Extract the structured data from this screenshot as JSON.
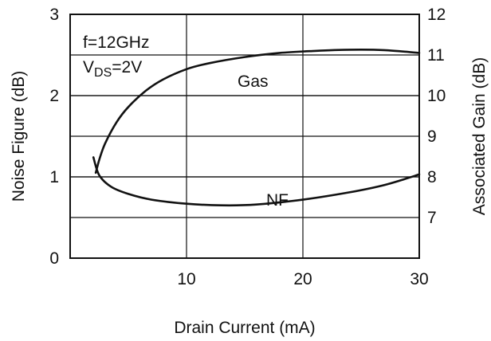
{
  "chart_data": {
    "type": "line",
    "title": "",
    "xlabel": "Drain Current (mA)",
    "ylabel_left": "Noise Figure (dB)",
    "ylabel_right": "Associated Gain (dB)",
    "xlim": [
      0,
      30
    ],
    "ylim_left": [
      0,
      3
    ],
    "ylim_right": [
      6,
      12
    ],
    "x_ticks": [
      {
        "value": 10,
        "label": "10"
      },
      {
        "value": 20,
        "label": "20"
      },
      {
        "value": 30,
        "label": "30"
      }
    ],
    "y_left_ticks": [
      {
        "value": 0,
        "label": "0"
      },
      {
        "value": 1,
        "label": "1"
      },
      {
        "value": 2,
        "label": "2"
      },
      {
        "value": 3,
        "label": "3"
      }
    ],
    "y_right_ticks": [
      {
        "value": 7,
        "label": "7"
      },
      {
        "value": 8,
        "label": "8"
      },
      {
        "value": 9,
        "label": "9"
      },
      {
        "value": 10,
        "label": "10"
      },
      {
        "value": 11,
        "label": "11"
      },
      {
        "value": 12,
        "label": "12"
      }
    ],
    "grid": true,
    "conditions": {
      "line1": "f=12GHz",
      "line2_prefix": "V",
      "line2_sub": "DS",
      "line2_suffix": "=2V"
    },
    "series": [
      {
        "name": "Gas",
        "axis": "right",
        "x": [
          2.2,
          2.5,
          3.0,
          4.0,
          5.0,
          6.5,
          8.0,
          10.0,
          12.0,
          15.0,
          18.0,
          21.0,
          24.0,
          27.0,
          30.0
        ],
        "y": [
          8.1,
          8.42,
          8.82,
          9.35,
          9.72,
          10.12,
          10.4,
          10.65,
          10.8,
          10.95,
          11.05,
          11.1,
          11.13,
          11.12,
          11.05
        ]
      },
      {
        "name": "NF",
        "axis": "left",
        "x": [
          2.0,
          2.5,
          3.5,
          5.0,
          7.0,
          10.0,
          13.0,
          16.0,
          20.0,
          24.0,
          27.0,
          30.0
        ],
        "y": [
          1.24,
          1.02,
          0.88,
          0.79,
          0.72,
          0.67,
          0.65,
          0.66,
          0.72,
          0.81,
          0.9,
          1.03
        ]
      }
    ]
  }
}
